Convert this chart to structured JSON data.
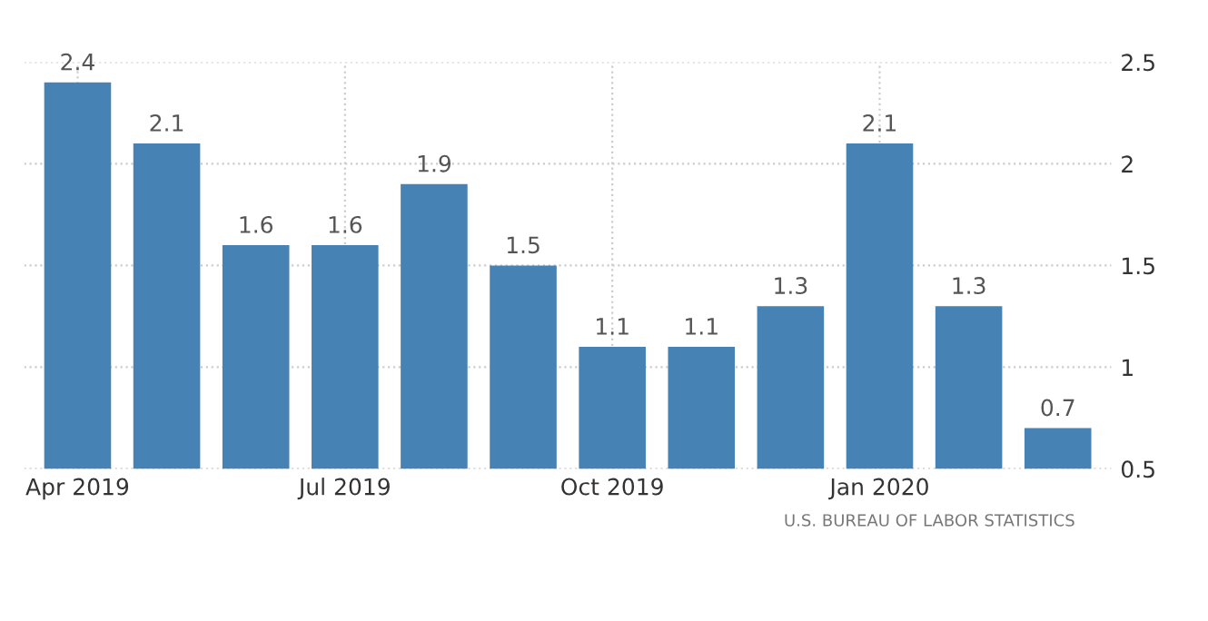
{
  "chart_data": {
    "type": "bar",
    "categories": [
      "Apr 2019",
      null,
      null,
      "Jul 2019",
      null,
      null,
      "Oct 2019",
      null,
      null,
      "Jan 2020",
      null,
      null
    ],
    "values": [
      2.4,
      2.1,
      1.6,
      1.6,
      1.9,
      1.5,
      1.1,
      1.1,
      1.3,
      2.1,
      1.3,
      0.7
    ],
    "color": "#4682b4",
    "ylim": [
      0.5,
      2.5
    ],
    "yticks": [
      0.5,
      1,
      1.5,
      2,
      2.5
    ],
    "grid": true,
    "data_labels": true,
    "annotations": [
      "U.S. BUREAU OF LABOR STATISTICS"
    ]
  }
}
